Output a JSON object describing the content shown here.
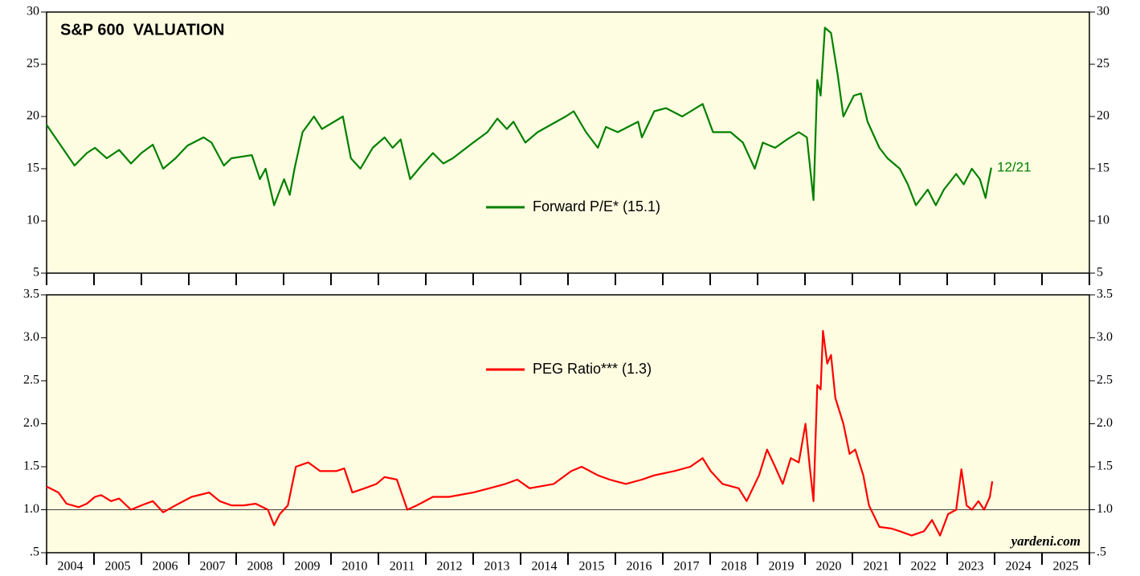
{
  "chart_data": [
    {
      "type": "line",
      "title": "S&P 600  VALUATION",
      "annotation": "12/21",
      "background": "#fffde1",
      "series": [
        {
          "name": "Forward P/E* (15.1)",
          "color": "#008000",
          "x": [
            2004.0,
            2004.59,
            2004.85,
            2005.02,
            2005.27,
            2005.53,
            2005.78,
            2006.0,
            2006.24,
            2006.46,
            2006.72,
            2006.97,
            2007.31,
            2007.48,
            2007.74,
            2007.9,
            2008.33,
            2008.5,
            2008.62,
            2008.8,
            2009.01,
            2009.13,
            2009.23,
            2009.4,
            2009.64,
            2009.81,
            2010.25,
            2010.42,
            2010.62,
            2010.88,
            2011.13,
            2011.3,
            2011.47,
            2011.67,
            2011.89,
            2012.15,
            2012.37,
            2012.57,
            2013.0,
            2013.3,
            2013.51,
            2013.71,
            2013.85,
            2014.1,
            2014.36,
            2014.95,
            2015.12,
            2015.38,
            2015.63,
            2015.8,
            2016.05,
            2016.48,
            2016.56,
            2016.82,
            2017.07,
            2017.41,
            2017.84,
            2018.06,
            2018.43,
            2018.69,
            2018.94,
            2019.11,
            2019.37,
            2019.62,
            2019.87,
            2020.04,
            2020.18,
            2020.26,
            2020.33,
            2020.42,
            2020.55,
            2020.69,
            2020.81,
            2021.03,
            2021.18,
            2021.32,
            2021.57,
            2021.74,
            2022.0,
            2022.17,
            2022.34,
            2022.59,
            2022.76,
            2022.93,
            2023.19,
            2023.35,
            2023.52,
            2023.69,
            2023.81,
            2023.86,
            2023.93
          ],
          "values": [
            19.2,
            15.3,
            16.5,
            17,
            16,
            16.8,
            15.5,
            16.5,
            17.3,
            15,
            16,
            17.2,
            18,
            17.5,
            15.3,
            16,
            16.3,
            14,
            15,
            11.5,
            14,
            12.5,
            15,
            18.5,
            20,
            18.8,
            20,
            16,
            15,
            17,
            18,
            17,
            17.8,
            14,
            15.2,
            16.5,
            15.5,
            16,
            17.5,
            18.5,
            19.8,
            18.8,
            19.5,
            17.5,
            18.5,
            20,
            20.5,
            18.5,
            17,
            19,
            18.5,
            19.5,
            18,
            20.5,
            20.8,
            20,
            21.2,
            18.5,
            18.5,
            17.5,
            15,
            17.5,
            17,
            17.8,
            18.5,
            18,
            12,
            23.5,
            22,
            28.5,
            28,
            24,
            20,
            22,
            22.2,
            19.5,
            17,
            16,
            15,
            13.5,
            11.5,
            13,
            11.5,
            13,
            14.5,
            13.5,
            15,
            14,
            12.2,
            13.5,
            15.1
          ]
        }
      ],
      "xlim": [
        2004,
        2026
      ],
      "xticks": [
        2004,
        2005,
        2006,
        2007,
        2008,
        2009,
        2010,
        2011,
        2012,
        2013,
        2014,
        2015,
        2016,
        2017,
        2018,
        2019,
        2020,
        2021,
        2022,
        2023,
        2024,
        2025,
        2026
      ],
      "ylim": [
        5,
        30
      ],
      "yticks": [
        5,
        10,
        15,
        20,
        25,
        30
      ]
    },
    {
      "type": "line",
      "annotation": "yardeni.com",
      "background": "#fffde1",
      "hline": 1,
      "series": [
        {
          "name": "PEG Ratio*** (1.3)",
          "color": "#ff0000",
          "x": [
            2004.0,
            2004.25,
            2004.42,
            2004.68,
            2004.85,
            2005.02,
            2005.15,
            2005.36,
            2005.53,
            2005.78,
            2006.04,
            2006.24,
            2006.46,
            2006.72,
            2007.06,
            2007.43,
            2007.65,
            2007.9,
            2008.16,
            2008.41,
            2008.67,
            2008.8,
            2008.92,
            2009.09,
            2009.26,
            2009.52,
            2009.77,
            2010.11,
            2010.28,
            2010.45,
            2010.71,
            2010.96,
            2011.13,
            2011.39,
            2011.61,
            2011.81,
            2012.15,
            2012.49,
            2013.0,
            2013.34,
            2013.68,
            2013.93,
            2014.19,
            2014.7,
            2015.07,
            2015.29,
            2015.63,
            2015.88,
            2016.22,
            2016.56,
            2016.82,
            2017.24,
            2017.58,
            2017.84,
            2018.01,
            2018.26,
            2018.6,
            2018.77,
            2019.03,
            2019.2,
            2019.37,
            2019.53,
            2019.7,
            2019.87,
            2020.01,
            2020.1,
            2020.18,
            2020.26,
            2020.33,
            2020.38,
            2020.47,
            2020.55,
            2020.64,
            2020.81,
            2020.94,
            2021.06,
            2021.23,
            2021.35,
            2021.57,
            2021.83,
            2022.0,
            2022.25,
            2022.51,
            2022.68,
            2022.85,
            2023.02,
            2023.19,
            2023.3,
            2023.41,
            2023.52,
            2023.66,
            2023.78,
            2023.9,
            2023.95
          ],
          "values": [
            1.27,
            1.2,
            1.07,
            1.03,
            1.07,
            1.15,
            1.17,
            1.1,
            1.13,
            1,
            1.06,
            1.1,
            0.97,
            1.05,
            1.15,
            1.2,
            1.1,
            1.05,
            1.05,
            1.07,
            1,
            0.82,
            0.95,
            1.05,
            1.5,
            1.55,
            1.45,
            1.45,
            1.48,
            1.2,
            1.25,
            1.3,
            1.38,
            1.35,
            1,
            1.05,
            1.15,
            1.15,
            1.2,
            1.25,
            1.3,
            1.35,
            1.25,
            1.3,
            1.45,
            1.5,
            1.4,
            1.35,
            1.3,
            1.35,
            1.4,
            1.45,
            1.5,
            1.6,
            1.45,
            1.3,
            1.25,
            1.1,
            1.4,
            1.7,
            1.5,
            1.3,
            1.6,
            1.55,
            2,
            1.5,
            1.1,
            2.45,
            2.4,
            3.08,
            2.7,
            2.8,
            2.3,
            2,
            1.65,
            1.7,
            1.4,
            1.05,
            0.8,
            0.78,
            0.75,
            0.7,
            0.75,
            0.88,
            0.7,
            0.95,
            1,
            1.47,
            1.05,
            1,
            1.1,
            1,
            1.15,
            1.33
          ]
        }
      ],
      "xlim": [
        2004,
        2026
      ],
      "xticks": [
        2004,
        2005,
        2006,
        2007,
        2008,
        2009,
        2010,
        2011,
        2012,
        2013,
        2014,
        2015,
        2016,
        2017,
        2018,
        2019,
        2020,
        2021,
        2022,
        2023,
        2024,
        2025,
        2026
      ],
      "year_labels": [
        2004,
        2005,
        2006,
        2007,
        2008,
        2009,
        2010,
        2011,
        2012,
        2013,
        2014,
        2015,
        2016,
        2017,
        2018,
        2019,
        2020,
        2021,
        2022,
        2023,
        2024,
        2025
      ],
      "ylim": [
        0.5,
        3.5
      ],
      "yticks": [
        {
          "value": 0.5,
          "label": ".5"
        },
        {
          "value": 1,
          "label": "1.0"
        },
        1.5,
        {
          "value": 2,
          "label": "2.0"
        },
        2.5,
        {
          "value": 3,
          "label": "3.0"
        },
        3.5
      ]
    }
  ]
}
